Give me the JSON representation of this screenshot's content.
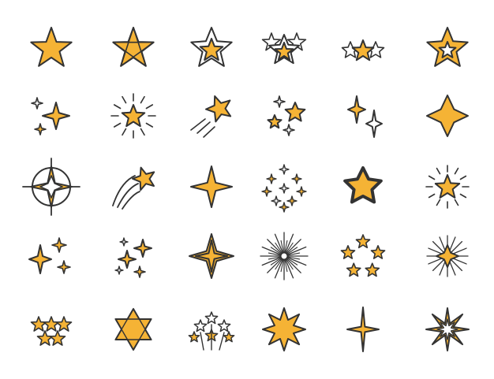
{
  "palette": {
    "fill": "#F5B335",
    "stroke": "#333333",
    "background": "#FFFFFF"
  },
  "icon_grid": {
    "rows": [
      [
        "star-solid-icon",
        "star-split-icon",
        "star-outline-icon",
        "star-burst-icon",
        "three-stars-icon",
        "star-inner-star-icon"
      ],
      [
        "sparkle-cluster-icon",
        "star-glow-icon",
        "shooting-star-icon",
        "stars-scatter-icon",
        "twin-sparkles-icon",
        "diamond-sparkle-icon"
      ],
      [
        "compass-rose-icon",
        "comet-icon",
        "four-point-sparkle-icon",
        "tiny-sparkles-field-icon",
        "rounded-star-icon",
        "star-radiant-icon"
      ],
      [
        "triple-sparkle-icon",
        "sparkle-trio-icon",
        "north-star-icon",
        "starburst-rays-icon",
        "star-ring-icon",
        "spark-flare-icon"
      ],
      [
        "five-stars-rating-icon",
        "star-of-david-icon",
        "fireworks-icon",
        "eight-point-star-icon",
        "long-sparkle-icon",
        "sharp-eight-point-star-icon"
      ]
    ]
  }
}
